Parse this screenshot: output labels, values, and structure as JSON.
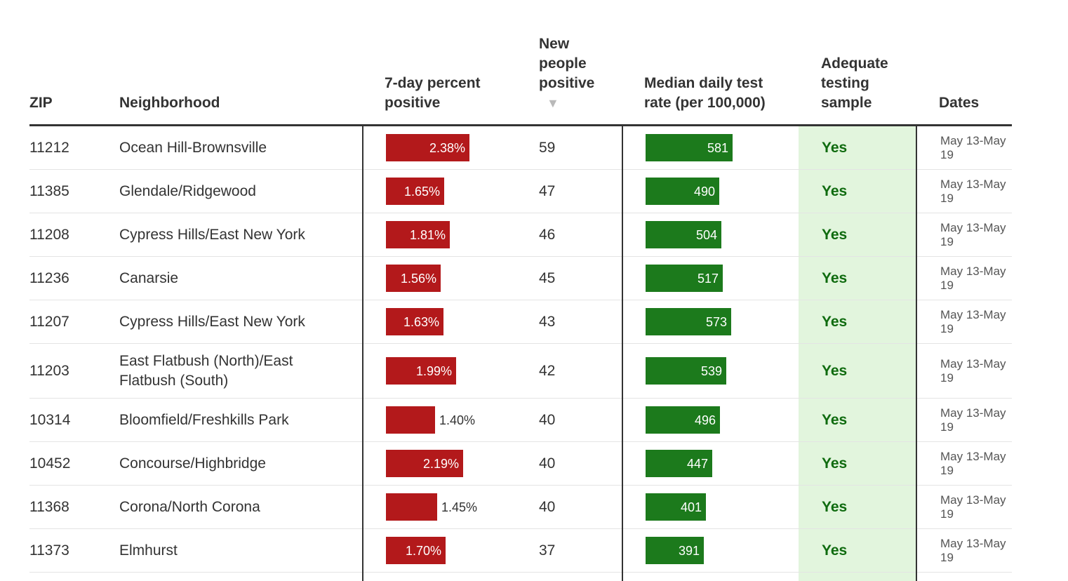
{
  "headers": {
    "zip": "ZIP",
    "neighborhood": "Neighborhood",
    "pct_positive": "7-day percent\npositive",
    "new_positive": "New\npeople\npositive",
    "test_rate": "Median daily test\nrate (per 100,000)",
    "adequate": "Adequate\ntesting\nsample",
    "dates": "Dates"
  },
  "sort_indicator": "▼",
  "colors": {
    "positive_bar": "#b3191b",
    "test_bar": "#1c7a1c",
    "adequate_bg": "#e2f5dd",
    "adequate_text": "#0f6b0f"
  },
  "rows": [
    {
      "zip": "11212",
      "neighborhood": "Ocean Hill-Brownsville",
      "pct": "2.38%",
      "pct_value": 2.38,
      "label_outside": false,
      "new": "59",
      "rate": "581",
      "rate_value": 581,
      "adequate": "Yes",
      "dates": "May 13-May 19"
    },
    {
      "zip": "11385",
      "neighborhood": "Glendale/Ridgewood",
      "pct": "1.65%",
      "pct_value": 1.65,
      "label_outside": false,
      "new": "47",
      "rate": "490",
      "rate_value": 490,
      "adequate": "Yes",
      "dates": "May 13-May 19"
    },
    {
      "zip": "11208",
      "neighborhood": "Cypress Hills/East New York",
      "pct": "1.81%",
      "pct_value": 1.81,
      "label_outside": false,
      "new": "46",
      "rate": "504",
      "rate_value": 504,
      "adequate": "Yes",
      "dates": "May 13-May 19"
    },
    {
      "zip": "11236",
      "neighborhood": "Canarsie",
      "pct": "1.56%",
      "pct_value": 1.56,
      "label_outside": false,
      "new": "45",
      "rate": "517",
      "rate_value": 517,
      "adequate": "Yes",
      "dates": "May 13-May 19"
    },
    {
      "zip": "11207",
      "neighborhood": "Cypress Hills/East New York",
      "pct": "1.63%",
      "pct_value": 1.63,
      "label_outside": false,
      "new": "43",
      "rate": "573",
      "rate_value": 573,
      "adequate": "Yes",
      "dates": "May 13-May 19"
    },
    {
      "zip": "11203",
      "neighborhood": "East Flatbush (North)/East Flatbush (South)",
      "pct": "1.99%",
      "pct_value": 1.99,
      "label_outside": false,
      "new": "42",
      "rate": "539",
      "rate_value": 539,
      "adequate": "Yes",
      "dates": "May 13-May 19"
    },
    {
      "zip": "10314",
      "neighborhood": "Bloomfield/Freshkills Park",
      "pct": "1.40%",
      "pct_value": 1.4,
      "label_outside": true,
      "new": "40",
      "rate": "496",
      "rate_value": 496,
      "adequate": "Yes",
      "dates": "May 13-May 19"
    },
    {
      "zip": "10452",
      "neighborhood": "Concourse/Highbridge",
      "pct": "2.19%",
      "pct_value": 2.19,
      "label_outside": false,
      "new": "40",
      "rate": "447",
      "rate_value": 447,
      "adequate": "Yes",
      "dates": "May 13-May 19"
    },
    {
      "zip": "11368",
      "neighborhood": "Corona/North Corona",
      "pct": "1.45%",
      "pct_value": 1.45,
      "label_outside": true,
      "new": "40",
      "rate": "401",
      "rate_value": 401,
      "adequate": "Yes",
      "dates": "May 13-May 19"
    },
    {
      "zip": "11373",
      "neighborhood": "Elmhurst",
      "pct": "1.70%",
      "pct_value": 1.7,
      "label_outside": false,
      "new": "37",
      "rate": "391",
      "rate_value": 391,
      "adequate": "Yes",
      "dates": "May 13-May 19"
    }
  ]
}
